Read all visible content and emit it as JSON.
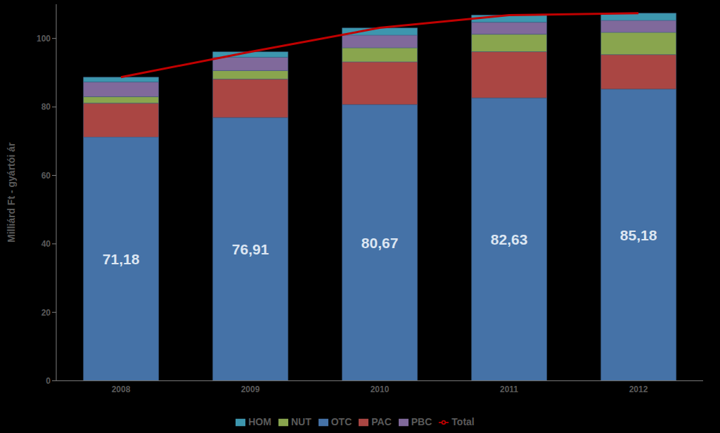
{
  "chart_data": {
    "type": "bar",
    "stacked": true,
    "grid": false,
    "legend": "bottom",
    "y_label": "Milliárd Ft - gyártói ár",
    "categories": [
      "2008",
      "2009",
      "2010",
      "2011",
      "2012"
    ],
    "ylim": [
      0,
      110
    ],
    "yticks": [
      0,
      20,
      40,
      60,
      80,
      100
    ],
    "series": [
      {
        "name": "OTC",
        "color": "#4572a7",
        "values": [
          71.18,
          76.91,
          80.67,
          82.63,
          85.18
        ],
        "data_labels": true,
        "value_labels": [
          "71,18",
          "76,91",
          "80,67",
          "82,63",
          "85,18"
        ]
      },
      {
        "name": "PAC",
        "color": "#aa4643",
        "values": [
          9.9,
          11.2,
          12.5,
          13.5,
          10.1
        ]
      },
      {
        "name": "NUT",
        "color": "#89a54e",
        "values": [
          1.9,
          2.5,
          4.1,
          5.1,
          6.5
        ]
      },
      {
        "name": "PBC",
        "color": "#80699b",
        "values": [
          4.3,
          3.9,
          3.7,
          3.5,
          3.5
        ]
      },
      {
        "name": "HOM",
        "color": "#3d96ae",
        "values": [
          1.4,
          1.6,
          2.1,
          2.1,
          2.1
        ]
      },
      {
        "name": "Total",
        "type": "line",
        "color": "#c00000",
        "values": [
          88.7,
          96.1,
          103.1,
          106.8,
          107.4
        ]
      }
    ]
  }
}
